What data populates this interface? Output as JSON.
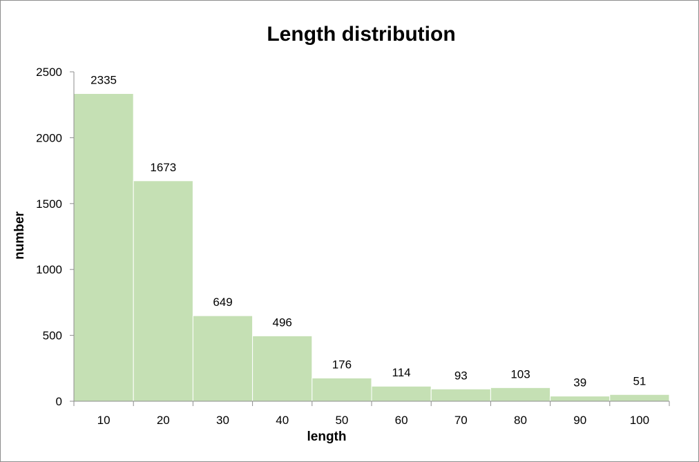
{
  "chart_data": {
    "type": "bar",
    "title": "Length distribution",
    "xlabel": "length",
    "ylabel": "number",
    "categories": [
      "10",
      "20",
      "30",
      "40",
      "50",
      "60",
      "70",
      "80",
      "90",
      "100"
    ],
    "values": [
      2335,
      1673,
      649,
      496,
      176,
      114,
      93,
      103,
      39,
      51
    ],
    "ylim": [
      0,
      2500
    ],
    "yticks": [
      "0",
      "500",
      "1000",
      "1500",
      "2000",
      "2500"
    ],
    "grid": false,
    "legend": "none",
    "bar_color": "#c5e0b4",
    "axis_color": "#8c8c8c"
  }
}
